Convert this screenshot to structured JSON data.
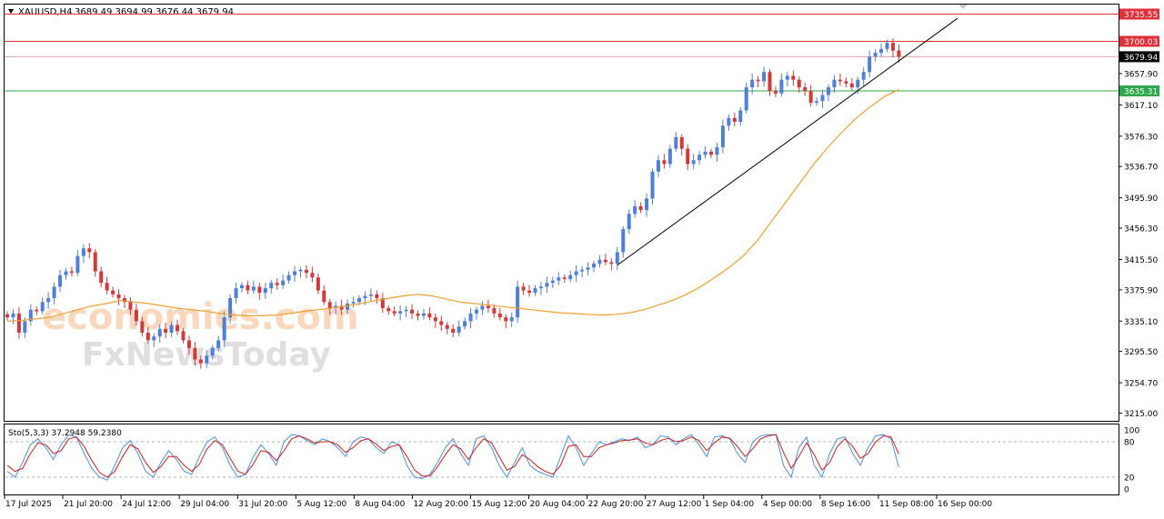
{
  "header": {
    "symbol": "XAUUSD,H4",
    "ohlc": "3689.49 3694.99 3676.44 3679.94"
  },
  "stoch_header": {
    "label": "Sto(5,3,3) 37.2948 59.2380"
  },
  "watermark": {
    "line1": "economies.com",
    "line2": "FxNewsToday"
  },
  "colors": {
    "bull": "#4f7fd6",
    "bear": "#d23a3a",
    "ma": "#f0a030",
    "resistance": "#e0303a",
    "support": "#2ea84a",
    "trendline": "#000000",
    "stoch_main": "#4a90e2",
    "stoch_signal": "#cc1f1f"
  },
  "chart_data": [
    {
      "type": "candlestick",
      "title": "XAUUSD,H4",
      "ylim": [
        3205,
        3748
      ],
      "y_ticks": [
        3215.0,
        3254.7,
        3295.5,
        3335.1,
        3375.9,
        3415.5,
        3456.3,
        3495.9,
        3536.7,
        3576.3,
        3617.1,
        3657.9
      ],
      "x_tick_labels": [
        "17 Jul 2025",
        "21 Jul 20:00",
        "24 Jul 12:00",
        "29 Jul 04:00",
        "31 Jul 20:00",
        "5 Aug 12:00",
        "8 Aug 04:00",
        "12 Aug 20:00",
        "15 Aug 12:00",
        "20 Aug 04:00",
        "22 Aug 20:00",
        "27 Aug 12:00",
        "1 Sep 04:00",
        "4 Sep 00:00",
        "8 Sep 16:00",
        "11 Sep 08:00",
        "16 Sep 00:00"
      ],
      "closes": [
        3340,
        3345,
        3320,
        3335,
        3350,
        3348,
        3360,
        3365,
        3380,
        3395,
        3400,
        3398,
        3420,
        3430,
        3425,
        3400,
        3385,
        3375,
        3370,
        3365,
        3360,
        3350,
        3335,
        3320,
        3310,
        3315,
        3325,
        3320,
        3330,
        3322,
        3310,
        3300,
        3285,
        3280,
        3290,
        3300,
        3310,
        3340,
        3365,
        3378,
        3382,
        3375,
        3380,
        3372,
        3378,
        3385,
        3382,
        3388,
        3395,
        3400,
        3402,
        3398,
        3392,
        3375,
        3360,
        3352,
        3355,
        3350,
        3358,
        3360,
        3365,
        3368,
        3370,
        3365,
        3352,
        3348,
        3345,
        3348,
        3350,
        3345,
        3342,
        3345,
        3340,
        3335,
        3330,
        3325,
        3320,
        3328,
        3335,
        3345,
        3350,
        3355,
        3352,
        3345,
        3340,
        3335,
        3340,
        3380,
        3375,
        3372,
        3378,
        3380,
        3385,
        3388,
        3392,
        3390,
        3395,
        3400,
        3402,
        3405,
        3410,
        3415,
        3412,
        3410,
        3425,
        3455,
        3475,
        3485,
        3480,
        3495,
        3530,
        3545,
        3540,
        3560,
        3575,
        3560,
        3540,
        3545,
        3552,
        3556,
        3552,
        3562,
        3590,
        3600,
        3595,
        3610,
        3640,
        3650,
        3648,
        3660,
        3635,
        3632,
        3650,
        3655,
        3650,
        3640,
        3635,
        3620,
        3622,
        3630,
        3640,
        3650,
        3648,
        3645,
        3640,
        3650,
        3660,
        3680,
        3685,
        3690,
        3698,
        3688,
        3680
      ],
      "ma_series": {
        "period": 50,
        "values": [
          3335,
          3336,
          3338,
          3340,
          3345,
          3350,
          3355,
          3358,
          3362,
          3360,
          3358,
          3355,
          3352,
          3350,
          3348,
          3345,
          3343,
          3342,
          3342,
          3343,
          3345,
          3348,
          3350,
          3352,
          3355,
          3358,
          3362,
          3365,
          3368,
          3370,
          3368,
          3364,
          3360,
          3358,
          3356,
          3354,
          3352,
          3350,
          3348,
          3346,
          3345,
          3344,
          3343,
          3344,
          3346,
          3350,
          3356,
          3362,
          3370,
          3380,
          3392,
          3405,
          3420,
          3440,
          3465,
          3490,
          3515,
          3540,
          3562,
          3582,
          3600,
          3615,
          3628,
          3637
        ]
      },
      "horizontal_levels": [
        {
          "value": 3735.55,
          "label": "3735.55",
          "style": "resistance"
        },
        {
          "value": 3700.03,
          "label": "3700.03",
          "style": "resistance"
        },
        {
          "value": 3679.94,
          "label": "3679.94",
          "style": "current"
        },
        {
          "value": 3635.31,
          "label": "3635.31",
          "style": "support"
        }
      ],
      "trendline": {
        "from": {
          "bar": 104,
          "price": 3408
        },
        "to": {
          "bar": 162,
          "price": 3730
        }
      }
    },
    {
      "type": "line",
      "title": "Sto(5,3,3) 37.2948 59.2380",
      "ylim": [
        0,
        100
      ],
      "y_ticks": [
        0,
        20,
        80,
        100
      ],
      "levels": [
        20,
        80
      ],
      "series": [
        {
          "values": [
            30,
            20,
            45,
            75,
            85,
            70,
            50,
            75,
            92,
            88,
            60,
            35,
            20,
            15,
            40,
            70,
            82,
            60,
            30,
            20,
            45,
            65,
            50,
            30,
            25,
            55,
            80,
            88,
            70,
            40,
            20,
            25,
            55,
            75,
            60,
            40,
            80,
            92,
            90,
            82,
            75,
            85,
            80,
            70,
            55,
            80,
            88,
            85,
            70,
            60,
            80,
            75,
            40,
            20,
            18,
            25,
            45,
            70,
            85,
            60,
            40,
            85,
            90,
            70,
            40,
            20,
            45,
            70,
            40,
            30,
            25,
            20,
            55,
            90,
            70,
            40,
            60,
            80,
            75,
            80,
            85,
            82,
            88,
            70,
            75,
            90,
            88,
            75,
            85,
            92,
            75,
            55,
            88,
            90,
            85,
            60,
            45,
            80,
            90,
            92,
            92,
            40,
            20,
            70,
            88,
            40,
            20,
            60,
            85,
            88,
            60,
            40,
            70,
            90,
            92,
            85,
            37
          ]
        },
        {
          "values": [
            40,
            30,
            35,
            60,
            78,
            75,
            60,
            65,
            85,
            88,
            72,
            48,
            28,
            20,
            30,
            55,
            75,
            68,
            45,
            28,
            38,
            55,
            55,
            40,
            30,
            42,
            68,
            82,
            75,
            52,
            30,
            25,
            42,
            65,
            62,
            48,
            65,
            85,
            90,
            85,
            78,
            80,
            80,
            75,
            62,
            70,
            82,
            85,
            76,
            65,
            72,
            75,
            55,
            32,
            22,
            22,
            38,
            58,
            75,
            68,
            50,
            70,
            85,
            78,
            55,
            32,
            38,
            58,
            50,
            38,
            30,
            25,
            40,
            72,
            75,
            55,
            55,
            70,
            75,
            78,
            82,
            83,
            85,
            78,
            75,
            82,
            86,
            80,
            82,
            88,
            82,
            65,
            78,
            88,
            86,
            72,
            55,
            68,
            85,
            90,
            92,
            62,
            35,
            55,
            78,
            58,
            32,
            45,
            72,
            85,
            72,
            52,
            60,
            80,
            90,
            88,
            59
          ]
        }
      ]
    }
  ]
}
